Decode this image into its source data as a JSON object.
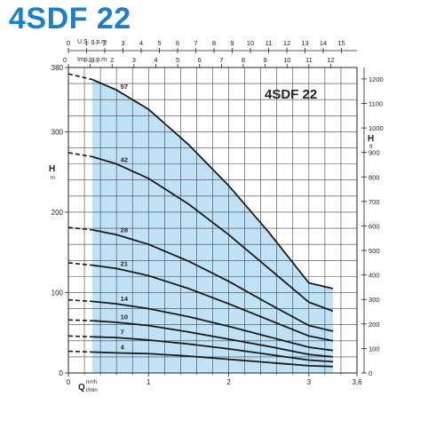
{
  "header": {
    "title": "4SDF 22"
  },
  "colors": {
    "title": "#1e7fc4",
    "operating_band": "#bfe2f7",
    "curve": "#1a1a1a",
    "grid": "#444444"
  },
  "chart_data": {
    "type": "line",
    "title": "4SDF 22",
    "grid": true,
    "x_unit_labels": {
      "primary_line1": "Q",
      "primary_unit1": "m³/h",
      "primary_unit2": "l/min",
      "top1": "U.S. g.p.m",
      "top2": "Imp. g.p.m"
    },
    "y_unit_labels": {
      "left_symbol": "H",
      "left_unit": "m",
      "right_symbol": "H",
      "right_unit": "ft"
    },
    "x_axis": {
      "unit": "m³/h",
      "range": [
        0,
        3.6
      ],
      "ticks": [
        "0",
        "1",
        "2",
        "3",
        "3,6"
      ],
      "tick_values": [
        0,
        1,
        2,
        3,
        3.6
      ]
    },
    "x_axis_top_us": {
      "unit": "U.S. g.p.m",
      "range": [
        0,
        15.85
      ],
      "ticks": [
        "0",
        "1",
        "2",
        "3",
        "4",
        "5",
        "6",
        "7",
        "8",
        "9",
        "10",
        "11",
        "12",
        "13",
        "14",
        "15"
      ]
    },
    "x_axis_top_imp": {
      "unit": "Imp. g.p.m",
      "range": [
        0,
        13.2
      ],
      "ticks": [
        "0",
        "1",
        "2",
        "3",
        "4",
        "5",
        "6",
        "7",
        "8",
        "9",
        "10",
        "11",
        "12"
      ]
    },
    "y_axis_left": {
      "unit": "m",
      "range": [
        0,
        380
      ],
      "ticks": [
        "0",
        "100",
        "200",
        "300",
        "380"
      ],
      "tick_values": [
        0,
        100,
        200,
        300,
        380
      ]
    },
    "y_axis_right": {
      "unit": "ft",
      "range": [
        0,
        1247
      ],
      "ticks": [
        "0",
        "100",
        "200",
        "300",
        "400",
        "500",
        "600",
        "700",
        "800",
        "900",
        "1000",
        "1100",
        "1200"
      ]
    },
    "operating_range": [
      0.3,
      3.3
    ],
    "series": [
      {
        "name": "57",
        "x": [
          0,
          0.3,
          0.6,
          1.0,
          1.5,
          2.0,
          2.5,
          3.0,
          3.3
        ],
        "y": [
          372,
          365,
          352,
          328,
          284,
          233,
          175,
          112,
          105
        ]
      },
      {
        "name": "42",
        "x": [
          0,
          0.3,
          0.6,
          1.0,
          1.5,
          2.0,
          2.5,
          3.0,
          3.3
        ],
        "y": [
          274,
          269,
          260,
          242,
          210,
          172,
          130,
          88,
          77
        ]
      },
      {
        "name": "28",
        "x": [
          0,
          0.3,
          0.6,
          1.0,
          1.5,
          2.0,
          2.5,
          3.0,
          3.3
        ],
        "y": [
          181,
          178,
          172,
          160,
          139,
          114,
          86,
          59,
          52
        ]
      },
      {
        "name": "21",
        "x": [
          0,
          0.3,
          0.6,
          1.0,
          1.5,
          2.0,
          2.5,
          3.0,
          3.3
        ],
        "y": [
          137,
          134,
          130,
          121,
          105,
          86,
          66,
          46,
          40
        ]
      },
      {
        "name": "14",
        "x": [
          0,
          0.3,
          0.6,
          1.0,
          1.5,
          2.0,
          2.5,
          3.0,
          3.3
        ],
        "y": [
          91,
          89,
          86,
          80,
          70,
          58,
          45,
          32,
          28
        ]
      },
      {
        "name": "10",
        "x": [
          0,
          0.3,
          0.6,
          1.0,
          1.5,
          2.0,
          2.5,
          3.0,
          3.3
        ],
        "y": [
          66,
          65,
          63,
          59,
          51,
          42,
          33,
          23,
          20
        ]
      },
      {
        "name": "7",
        "x": [
          0,
          0.3,
          0.6,
          1.0,
          1.5,
          2.0,
          2.5,
          3.0,
          3.3
        ],
        "y": [
          46,
          45,
          44,
          41,
          36,
          30,
          23,
          16,
          14
        ]
      },
      {
        "name": "4",
        "x": [
          0,
          0.3,
          0.6,
          1.0,
          1.5,
          2.0,
          2.5,
          3.0,
          3.3
        ],
        "y": [
          27,
          26,
          25,
          24,
          21,
          17,
          13,
          9,
          8
        ]
      }
    ]
  }
}
